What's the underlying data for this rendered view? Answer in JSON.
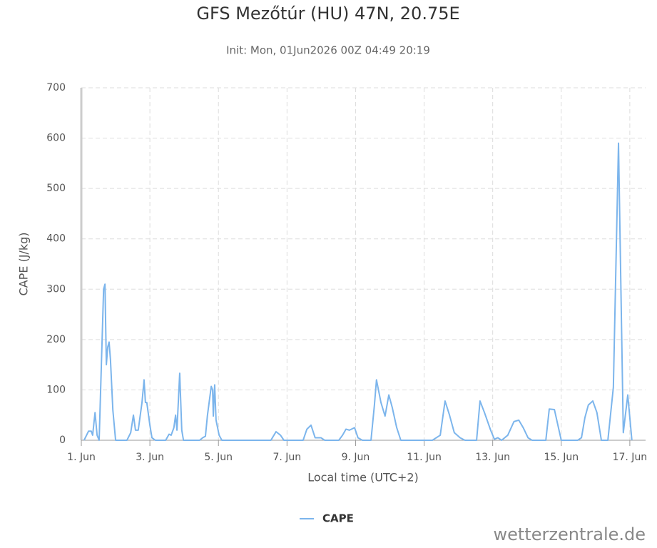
{
  "chart_data": {
    "type": "line",
    "title": "GFS Mezőtúr (HU) 47N, 20.75E",
    "subtitle": "Init: Mon, 01Jun2026 00Z 04:49 20:19",
    "x_label": "Local time (UTC+2)",
    "y_label": "CAPE (J/kg)",
    "credit": "wetterzentrale.de",
    "grid": true,
    "xlim": [
      1,
      17.46
    ],
    "ylim": [
      0,
      700
    ],
    "xticks": [
      {
        "value": 1,
        "label": "1. Jun"
      },
      {
        "value": 3,
        "label": "3. Jun"
      },
      {
        "value": 5,
        "label": "5. Jun"
      },
      {
        "value": 7,
        "label": "7. Jun"
      },
      {
        "value": 9,
        "label": "9. Jun"
      },
      {
        "value": 11,
        "label": "11. Jun"
      },
      {
        "value": 13,
        "label": "13. Jun"
      },
      {
        "value": 15,
        "label": "15. Jun"
      },
      {
        "value": 17,
        "label": "17. Jun"
      }
    ],
    "yticks": [
      0,
      100,
      200,
      300,
      400,
      500,
      600,
      700
    ],
    "x": [
      1.08,
      1.21,
      1.29,
      1.33,
      1.4,
      1.46,
      1.52,
      1.65,
      1.69,
      1.73,
      1.77,
      1.81,
      1.85,
      1.92,
      2.0,
      2.33,
      2.44,
      2.52,
      2.58,
      2.66,
      2.77,
      2.83,
      2.87,
      2.91,
      3.0,
      3.06,
      3.16,
      3.46,
      3.56,
      3.62,
      3.7,
      3.75,
      3.79,
      3.87,
      3.93,
      3.98,
      4.45,
      4.54,
      4.62,
      4.68,
      4.79,
      4.83,
      4.85,
      4.89,
      4.93,
      5.02,
      5.1,
      6.53,
      6.68,
      6.81,
      6.91,
      7.47,
      7.58,
      7.7,
      7.82,
      7.99,
      8.1,
      8.51,
      8.62,
      8.72,
      8.82,
      8.97,
      9.07,
      9.2,
      9.45,
      9.55,
      9.61,
      9.74,
      9.86,
      9.97,
      10.07,
      10.2,
      10.32,
      11.24,
      11.47,
      11.61,
      11.74,
      11.88,
      12.05,
      12.19,
      12.53,
      12.63,
      12.76,
      12.94,
      13.05,
      13.15,
      13.26,
      13.44,
      13.62,
      13.76,
      13.89,
      14.03,
      14.15,
      14.55,
      14.65,
      14.8,
      15.0,
      15.48,
      15.59,
      15.69,
      15.79,
      15.92,
      16.04,
      16.17,
      16.36,
      16.52,
      16.67,
      16.81,
      16.94,
      17.06
    ],
    "series": [
      {
        "name": "CAPE",
        "color": "#7cb5ec",
        "values": [
          0,
          18,
          18,
          10,
          55,
          10,
          0,
          300,
          310,
          150,
          185,
          195,
          160,
          60,
          0,
          0,
          15,
          50,
          20,
          20,
          75,
          120,
          75,
          75,
          30,
          5,
          0,
          0,
          12,
          10,
          25,
          50,
          20,
          133,
          20,
          0,
          0,
          5,
          8,
          50,
          107,
          100,
          48,
          110,
          40,
          10,
          0,
          0,
          17,
          10,
          0,
          0,
          22,
          30,
          5,
          5,
          0,
          0,
          10,
          22,
          20,
          25,
          5,
          0,
          0,
          70,
          120,
          75,
          48,
          90,
          65,
          25,
          0,
          0,
          10,
          78,
          50,
          15,
          5,
          0,
          0,
          78,
          55,
          20,
          2,
          5,
          0,
          10,
          37,
          40,
          25,
          5,
          0,
          0,
          62,
          61,
          0,
          0,
          5,
          45,
          70,
          78,
          55,
          0,
          0,
          105,
          590,
          15,
          90,
          0
        ]
      }
    ]
  }
}
